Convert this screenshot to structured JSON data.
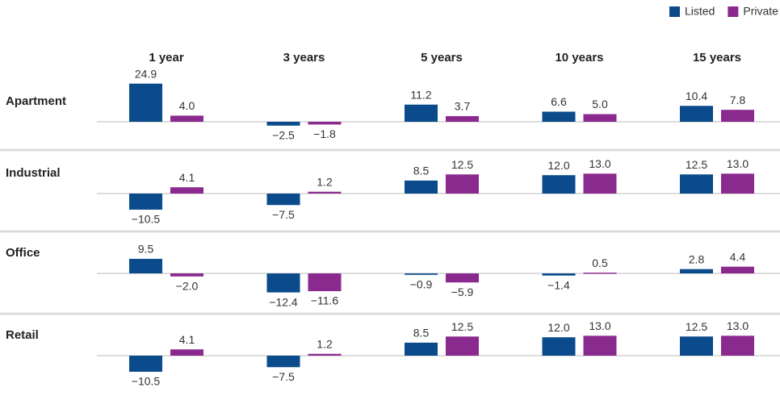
{
  "chart_data": {
    "type": "bar",
    "categories": [
      "1 year",
      "3 years",
      "5 years",
      "10 years",
      "15 years"
    ],
    "rows": [
      "Apartment",
      "Industrial",
      "Office",
      "Retail"
    ],
    "series": [
      {
        "name": "Listed",
        "color": "#0b4a8b",
        "values": [
          [
            24.9,
            -2.5,
            11.2,
            6.6,
            10.4
          ],
          [
            -10.5,
            -7.5,
            8.5,
            12.0,
            12.5
          ],
          [
            9.5,
            -12.4,
            -0.9,
            -1.4,
            2.8
          ],
          [
            -10.5,
            -7.5,
            8.5,
            12.0,
            12.5
          ]
        ],
        "value_labels": [
          [
            "24.9",
            "−2.5",
            "11.2",
            "6.6",
            "10.4"
          ],
          [
            "−10.5",
            "−7.5",
            "8.5",
            "12.0",
            "12.5"
          ],
          [
            "9.5",
            "−12.4",
            "−0.9",
            "−1.4",
            "2.8"
          ],
          [
            "−10.5",
            "−7.5",
            "8.5",
            "12.0",
            "12.5"
          ]
        ]
      },
      {
        "name": "Private",
        "color": "#8b2a8e",
        "values": [
          [
            4.0,
            -1.8,
            3.7,
            5.0,
            7.8
          ],
          [
            4.1,
            1.2,
            12.5,
            13.0,
            13.0
          ],
          [
            -2.0,
            -11.6,
            -5.9,
            0.5,
            4.4
          ],
          [
            4.1,
            1.2,
            12.5,
            13.0,
            13.0
          ]
        ],
        "value_labels": [
          [
            "4.0",
            "−1.8",
            "3.7",
            "5.0",
            "7.8"
          ],
          [
            "4.1",
            "1.2",
            "12.5",
            "13.0",
            "13.0"
          ],
          [
            "−2.0",
            "−11.6",
            "−5.9",
            "0.5",
            "4.4"
          ],
          [
            "4.1",
            "1.2",
            "12.5",
            "13.0",
            "13.0"
          ]
        ]
      }
    ]
  }
}
